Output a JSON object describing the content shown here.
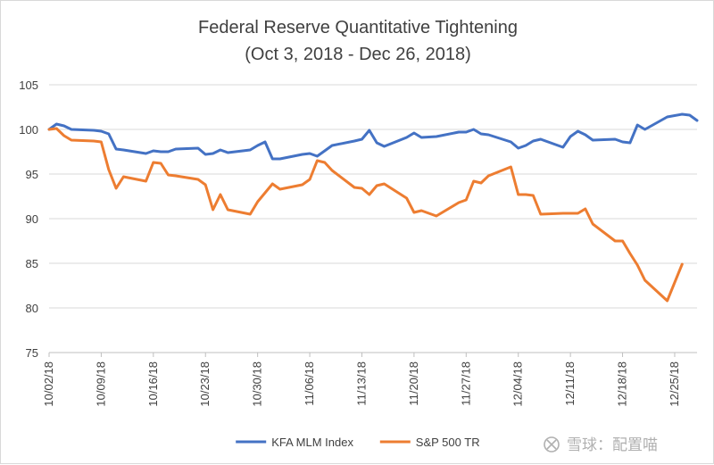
{
  "chart_data": {
    "type": "line",
    "title": "Federal Reserve Quantitative Tightening",
    "subtitle": "(Oct 3, 2018 - Dec 26, 2018)",
    "xlabel": "",
    "ylabel": "",
    "ylim": [
      75,
      105
    ],
    "yticks": [
      75,
      80,
      85,
      90,
      95,
      100,
      105
    ],
    "xlim": [
      "10/02/18",
      "12/28/18"
    ],
    "xticks": [
      "10/02/18",
      "10/09/18",
      "10/16/18",
      "10/23/18",
      "10/30/18",
      "11/06/18",
      "11/13/18",
      "11/20/18",
      "11/27/18",
      "12/04/18",
      "12/11/18",
      "12/18/18",
      "12/25/18"
    ],
    "grid": "horizontal",
    "legend_position": "bottom",
    "series": [
      {
        "name": "KFA MLM Index",
        "color": "#4472c4",
        "points": [
          [
            "10/02/18",
            100.0
          ],
          [
            "10/03/18",
            100.6
          ],
          [
            "10/04/18",
            100.4
          ],
          [
            "10/05/18",
            100.0
          ],
          [
            "10/08/18",
            99.9
          ],
          [
            "10/09/18",
            99.8
          ],
          [
            "10/10/18",
            99.5
          ],
          [
            "10/11/18",
            97.8
          ],
          [
            "10/12/18",
            97.7
          ],
          [
            "10/15/18",
            97.3
          ],
          [
            "10/16/18",
            97.6
          ],
          [
            "10/17/18",
            97.5
          ],
          [
            "10/18/18",
            97.5
          ],
          [
            "10/19/18",
            97.8
          ],
          [
            "10/22/18",
            97.9
          ],
          [
            "10/23/18",
            97.2
          ],
          [
            "10/24/18",
            97.3
          ],
          [
            "10/25/18",
            97.7
          ],
          [
            "10/26/18",
            97.4
          ],
          [
            "10/29/18",
            97.7
          ],
          [
            "10/30/18",
            98.2
          ],
          [
            "10/31/18",
            98.6
          ],
          [
            "11/01/18",
            96.7
          ],
          [
            "11/02/18",
            96.7
          ],
          [
            "11/05/18",
            97.2
          ],
          [
            "11/06/18",
            97.3
          ],
          [
            "11/07/18",
            97.0
          ],
          [
            "11/08/18",
            97.6
          ],
          [
            "11/09/18",
            98.2
          ],
          [
            "11/12/18",
            98.7
          ],
          [
            "11/13/18",
            98.9
          ],
          [
            "11/14/18",
            99.9
          ],
          [
            "11/15/18",
            98.5
          ],
          [
            "11/16/18",
            98.1
          ],
          [
            "11/19/18",
            99.1
          ],
          [
            "11/20/18",
            99.6
          ],
          [
            "11/21/18",
            99.1
          ],
          [
            "11/23/18",
            99.2
          ],
          [
            "11/26/18",
            99.7
          ],
          [
            "11/27/18",
            99.7
          ],
          [
            "11/28/18",
            100.0
          ],
          [
            "11/29/18",
            99.5
          ],
          [
            "11/30/18",
            99.4
          ],
          [
            "12/03/18",
            98.6
          ],
          [
            "12/04/18",
            97.9
          ],
          [
            "12/05/18",
            98.2
          ],
          [
            "12/06/18",
            98.7
          ],
          [
            "12/07/18",
            98.9
          ],
          [
            "12/10/18",
            98.0
          ],
          [
            "12/11/18",
            99.2
          ],
          [
            "12/12/18",
            99.8
          ],
          [
            "12/13/18",
            99.4
          ],
          [
            "12/14/18",
            98.8
          ],
          [
            "12/17/18",
            98.9
          ],
          [
            "12/18/18",
            98.6
          ],
          [
            "12/19/18",
            98.5
          ],
          [
            "12/20/18",
            100.5
          ],
          [
            "12/21/18",
            100.0
          ],
          [
            "12/24/18",
            101.4
          ],
          [
            "12/26/18",
            101.7
          ],
          [
            "12/27/18",
            101.6
          ],
          [
            "12/28/18",
            101.0
          ]
        ]
      },
      {
        "name": "S&P 500 TR",
        "color": "#ed7d31",
        "points": [
          [
            "10/02/18",
            100.0
          ],
          [
            "10/03/18",
            100.1
          ],
          [
            "10/04/18",
            99.3
          ],
          [
            "10/05/18",
            98.8
          ],
          [
            "10/08/18",
            98.7
          ],
          [
            "10/09/18",
            98.6
          ],
          [
            "10/10/18",
            95.5
          ],
          [
            "10/11/18",
            93.4
          ],
          [
            "10/12/18",
            94.7
          ],
          [
            "10/15/18",
            94.2
          ],
          [
            "10/16/18",
            96.3
          ],
          [
            "10/17/18",
            96.2
          ],
          [
            "10/18/18",
            94.9
          ],
          [
            "10/19/18",
            94.8
          ],
          [
            "10/22/18",
            94.4
          ],
          [
            "10/23/18",
            93.8
          ],
          [
            "10/24/18",
            91.0
          ],
          [
            "10/25/18",
            92.7
          ],
          [
            "10/26/18",
            91.0
          ],
          [
            "10/29/18",
            90.5
          ],
          [
            "10/30/18",
            91.9
          ],
          [
            "10/31/18",
            92.9
          ],
          [
            "11/01/18",
            93.9
          ],
          [
            "11/02/18",
            93.3
          ],
          [
            "11/05/18",
            93.8
          ],
          [
            "11/06/18",
            94.4
          ],
          [
            "11/07/18",
            96.5
          ],
          [
            "11/08/18",
            96.3
          ],
          [
            "11/09/18",
            95.4
          ],
          [
            "11/12/18",
            93.5
          ],
          [
            "11/13/18",
            93.4
          ],
          [
            "11/14/18",
            92.7
          ],
          [
            "11/15/18",
            93.7
          ],
          [
            "11/16/18",
            93.9
          ],
          [
            "11/19/18",
            92.3
          ],
          [
            "11/20/18",
            90.7
          ],
          [
            "11/21/18",
            90.9
          ],
          [
            "11/23/18",
            90.3
          ],
          [
            "11/26/18",
            91.8
          ],
          [
            "11/27/18",
            92.1
          ],
          [
            "11/28/18",
            94.2
          ],
          [
            "11/29/18",
            94.0
          ],
          [
            "11/30/18",
            94.8
          ],
          [
            "12/03/18",
            95.8
          ],
          [
            "12/04/18",
            92.7
          ],
          [
            "12/05/18",
            92.7
          ],
          [
            "12/06/18",
            92.6
          ],
          [
            "12/07/18",
            90.5
          ],
          [
            "12/10/18",
            90.6
          ],
          [
            "12/11/18",
            90.6
          ],
          [
            "12/12/18",
            90.6
          ],
          [
            "12/13/18",
            91.1
          ],
          [
            "12/14/18",
            89.4
          ],
          [
            "12/17/18",
            87.5
          ],
          [
            "12/18/18",
            87.5
          ],
          [
            "12/19/18",
            86.1
          ],
          [
            "12/20/18",
            84.8
          ],
          [
            "12/21/18",
            83.1
          ],
          [
            "12/24/18",
            80.8
          ],
          [
            "12/26/18",
            84.9
          ]
        ]
      }
    ]
  },
  "watermark": {
    "text": "雪球：配置喵"
  }
}
